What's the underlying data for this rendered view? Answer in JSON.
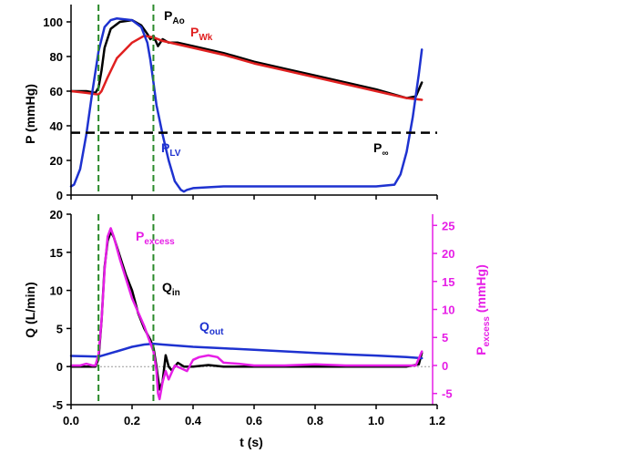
{
  "chart_data": [
    {
      "type": "line",
      "ylabel": "P (mmHg)",
      "xlim": [
        0,
        1.2
      ],
      "ylim": [
        0,
        110
      ],
      "yticks": [
        0,
        20,
        40,
        60,
        80,
        100
      ],
      "vlines": [
        0.09,
        0.27
      ],
      "series": [
        {
          "name_main": "P",
          "name_sub": "Ao",
          "color": "#000000",
          "x": [
            0.0,
            0.05,
            0.08,
            0.09,
            0.1,
            0.11,
            0.13,
            0.16,
            0.2,
            0.23,
            0.25,
            0.26,
            0.27,
            0.285,
            0.3,
            0.32,
            0.35,
            0.4,
            0.5,
            0.6,
            0.7,
            0.8,
            0.9,
            1.0,
            1.1,
            1.13,
            1.15
          ],
          "y": [
            60,
            60,
            59,
            62,
            72,
            85,
            96,
            100,
            101,
            98,
            93,
            90,
            92,
            86,
            90,
            88,
            88,
            86,
            82,
            77,
            73,
            69,
            65,
            61,
            56,
            57,
            65
          ]
        },
        {
          "name_main": "P",
          "name_sub": "Wk",
          "color": "#e02020",
          "x": [
            0.0,
            0.05,
            0.09,
            0.1,
            0.12,
            0.15,
            0.2,
            0.24,
            0.27,
            0.3,
            0.4,
            0.5,
            0.6,
            0.7,
            0.8,
            0.9,
            1.0,
            1.1,
            1.15
          ],
          "y": [
            60,
            59,
            58,
            60,
            68,
            79,
            88,
            92,
            91,
            89,
            85,
            81,
            76,
            72,
            68,
            64,
            60,
            56,
            55
          ]
        },
        {
          "name_main": "P",
          "name_sub": "LV",
          "color": "#1e32d0",
          "x": [
            0.0,
            0.01,
            0.03,
            0.05,
            0.07,
            0.09,
            0.1,
            0.11,
            0.13,
            0.15,
            0.2,
            0.23,
            0.25,
            0.26,
            0.27,
            0.28,
            0.3,
            0.32,
            0.34,
            0.36,
            0.37,
            0.38,
            0.4,
            0.5,
            0.6,
            0.8,
            1.0,
            1.06,
            1.08,
            1.1,
            1.12,
            1.14,
            1.15
          ],
          "y": [
            5,
            6,
            15,
            35,
            60,
            83,
            90,
            97,
            101,
            102,
            101,
            97,
            88,
            78,
            65,
            52,
            35,
            20,
            8,
            3,
            2,
            3,
            4,
            5,
            5,
            5,
            5,
            6,
            12,
            25,
            45,
            70,
            84
          ]
        },
        {
          "name_main": "P",
          "name_sub": "∞",
          "color": "#000000",
          "dashed": true,
          "x": [
            0.0,
            1.2
          ],
          "y": [
            36,
            36
          ]
        }
      ]
    },
    {
      "type": "line",
      "xlabel": "t (s)",
      "ylabel": "Q (L/min)",
      "y2label_main": "P",
      "y2label_sub": "excess",
      "y2label_unit": " (mmHg)",
      "xlim": [
        0,
        1.2
      ],
      "ylim": [
        -5,
        20
      ],
      "y2lim": [
        -7,
        27
      ],
      "xticks": [
        "0.0",
        "0.2",
        "0.4",
        "0.6",
        "0.8",
        "1.0",
        "1.2"
      ],
      "yticks": [
        -5,
        0,
        5,
        10,
        15,
        20
      ],
      "y2ticks": [
        -5,
        0,
        5,
        10,
        15,
        20,
        25
      ],
      "vlines": [
        0.09,
        0.27
      ],
      "series": [
        {
          "name_main": "Q",
          "name_sub": "in",
          "color": "#000000",
          "axis": "left",
          "x": [
            0.0,
            0.05,
            0.08,
            0.09,
            0.1,
            0.11,
            0.12,
            0.13,
            0.14,
            0.16,
            0.18,
            0.2,
            0.22,
            0.24,
            0.26,
            0.27,
            0.28,
            0.29,
            0.3,
            0.31,
            0.32,
            0.33,
            0.35,
            0.37,
            0.4,
            0.45,
            0.5,
            0.6,
            0.8,
            1.0,
            1.1,
            1.14,
            1.15
          ],
          "y": [
            0,
            0,
            0,
            1,
            6,
            13,
            16.5,
            17.7,
            17,
            14.5,
            12,
            10,
            7,
            5,
            3.5,
            2.5,
            0,
            -3,
            -2,
            1.5,
            0,
            -0.5,
            0.5,
            0,
            0,
            0.2,
            0,
            0,
            0,
            0,
            0,
            0.3,
            1.8
          ]
        },
        {
          "name_main": "Q",
          "name_sub": "out",
          "color": "#1e32d0",
          "axis": "left",
          "x": [
            0.0,
            0.05,
            0.09,
            0.15,
            0.2,
            0.24,
            0.27,
            0.3,
            0.4,
            0.5,
            0.6,
            0.7,
            0.8,
            0.9,
            1.0,
            1.1,
            1.15
          ],
          "y": [
            1.4,
            1.35,
            1.3,
            2.0,
            2.6,
            2.9,
            3.0,
            2.9,
            2.6,
            2.4,
            2.2,
            2.0,
            1.8,
            1.6,
            1.45,
            1.25,
            1.1
          ]
        },
        {
          "name_main": "P",
          "name_sub": "excess",
          "color": "#e61ee6",
          "axis": "right",
          "x": [
            0.0,
            0.03,
            0.05,
            0.07,
            0.08,
            0.09,
            0.1,
            0.11,
            0.12,
            0.13,
            0.14,
            0.16,
            0.18,
            0.2,
            0.22,
            0.24,
            0.26,
            0.27,
            0.28,
            0.285,
            0.29,
            0.3,
            0.31,
            0.32,
            0.34,
            0.36,
            0.38,
            0.4,
            0.42,
            0.45,
            0.48,
            0.5,
            0.55,
            0.6,
            0.7,
            0.8,
            0.9,
            1.0,
            1.1,
            1.13,
            1.15
          ],
          "y": [
            0,
            0,
            0.3,
            0,
            0,
            2,
            8,
            17,
            23,
            24.5,
            23,
            19,
            15.5,
            12,
            9.5,
            7,
            4,
            2.5,
            -1,
            -5,
            -6,
            -3,
            -1,
            -2.5,
            0,
            -0.5,
            -1,
            1,
            1.5,
            1.8,
            1.5,
            0.5,
            0.3,
            0,
            0,
            0.2,
            0,
            0,
            0,
            0,
            2.5
          ]
        }
      ]
    }
  ]
}
